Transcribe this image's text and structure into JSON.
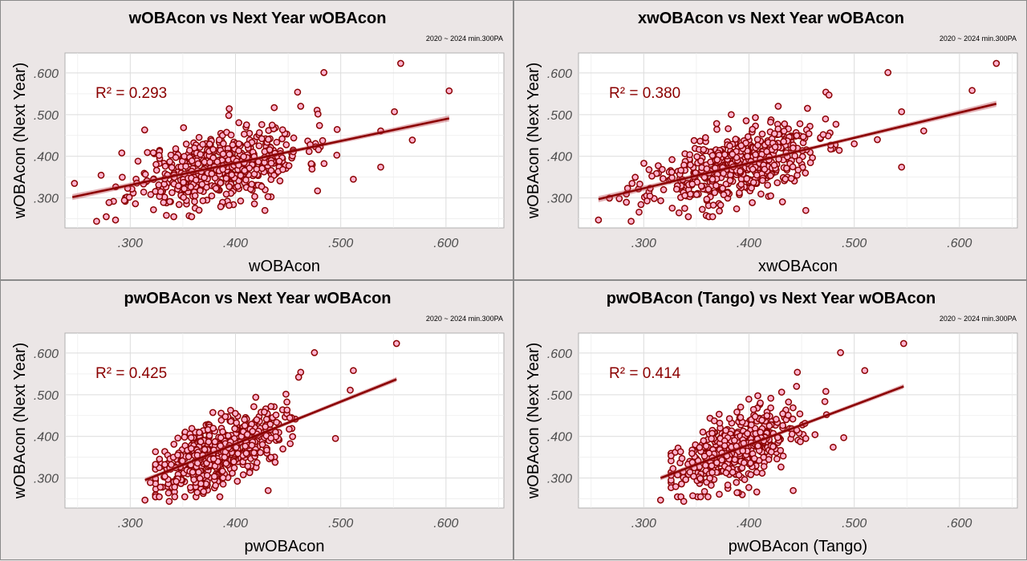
{
  "chart_data": [
    {
      "type": "scatter",
      "title": "wOBAcon vs Next Year wOBAcon",
      "subtitle": "2020 ~ 2024 min.300PA",
      "xlabel": "wOBAcon",
      "ylabel": "wOBAcon (Next Year)",
      "annotation": "R² = 0.293",
      "xlim": [
        0.238,
        0.655
      ],
      "ylim": [
        0.228,
        0.648
      ],
      "xticks": [
        0.3,
        0.4,
        0.5,
        0.6
      ],
      "yticks": [
        0.3,
        0.4,
        0.5,
        0.6
      ],
      "xtick_labels": [
        ".300",
        ".400",
        ".500",
        ".600"
      ],
      "ytick_labels": [
        ".300",
        ".400",
        ".500",
        ".600"
      ],
      "grid": true,
      "trend": {
        "x": [
          0.245,
          0.603
        ],
        "y": [
          0.302,
          0.491
        ]
      },
      "x_range": [
        0.245,
        0.603
      ],
      "slope": 0.53,
      "spread": 0.043,
      "seed": 11,
      "n_points": 520,
      "center": [
        0.385,
        0.382
      ],
      "sd": [
        0.04,
        0.045
      ],
      "highlighted_points": {
        "x": [
          0.557,
          0.603,
          0.484,
          0.551,
          0.568,
          0.538,
          0.459,
          0.247,
          0.292,
          0.286,
          0.268,
          0.538,
          0.428,
          0.512,
          0.478,
          0.462,
          0.471
        ],
        "y": [
          0.623,
          0.557,
          0.601,
          0.507,
          0.439,
          0.374,
          0.554,
          0.335,
          0.408,
          0.247,
          0.244,
          0.461,
          0.27,
          0.345,
          0.317,
          0.52,
          0.428
        ]
      }
    },
    {
      "type": "scatter",
      "title": "xwOBAcon vs Next Year wOBAcon",
      "subtitle": "2020 ~ 2024 min.300PA",
      "xlabel": "xwOBAcon",
      "ylabel": "wOBAcon (Next Year)",
      "annotation": "R² = 0.380",
      "xlim": [
        0.238,
        0.655
      ],
      "ylim": [
        0.228,
        0.648
      ],
      "xticks": [
        0.3,
        0.4,
        0.5,
        0.6
      ],
      "yticks": [
        0.3,
        0.4,
        0.5,
        0.6
      ],
      "xtick_labels": [
        ".300",
        ".400",
        ".500",
        ".600"
      ],
      "ytick_labels": [
        ".300",
        ".400",
        ".500",
        ".600"
      ],
      "grid": true,
      "trend": {
        "x": [
          0.257,
          0.635
        ],
        "y": [
          0.297,
          0.526
        ]
      },
      "x_range": [
        0.257,
        0.635
      ],
      "slope": 0.61,
      "spread": 0.041,
      "seed": 23,
      "n_points": 520,
      "center": [
        0.385,
        0.382
      ],
      "sd": [
        0.04,
        0.045
      ],
      "highlighted_points": {
        "x": [
          0.635,
          0.532,
          0.612,
          0.545,
          0.566,
          0.257,
          0.288,
          0.545,
          0.454,
          0.473,
          0.522,
          0.476,
          0.5
        ],
        "y": [
          0.623,
          0.601,
          0.558,
          0.507,
          0.461,
          0.247,
          0.244,
          0.374,
          0.27,
          0.554,
          0.44,
          0.547,
          0.43
        ]
      }
    },
    {
      "type": "scatter",
      "title": "pwOBAcon vs Next Year wOBAcon",
      "subtitle": "2020 ~ 2024 min.300PA",
      "xlabel": "pwOBAcon",
      "ylabel": "wOBAcon (Next Year)",
      "annotation": "R² = 0.425",
      "xlim": [
        0.238,
        0.655
      ],
      "ylim": [
        0.228,
        0.648
      ],
      "xticks": [
        0.3,
        0.4,
        0.5,
        0.6
      ],
      "yticks": [
        0.3,
        0.4,
        0.5,
        0.6
      ],
      "xtick_labels": [
        ".300",
        ".400",
        ".500",
        ".600"
      ],
      "ytick_labels": [
        ".300",
        ".400",
        ".500",
        ".600"
      ],
      "grid": true,
      "trend": {
        "x": [
          0.314,
          0.553
        ],
        "y": [
          0.295,
          0.537
        ]
      },
      "x_range": [
        0.314,
        0.553
      ],
      "slope": 1.01,
      "spread": 0.04,
      "seed": 37,
      "n_points": 520,
      "center": [
        0.385,
        0.382
      ],
      "sd": [
        0.03,
        0.045
      ],
      "highlighted_points": {
        "x": [
          0.553,
          0.475,
          0.512,
          0.509,
          0.314,
          0.319,
          0.337,
          0.431,
          0.495,
          0.462,
          0.46
        ],
        "y": [
          0.623,
          0.601,
          0.558,
          0.511,
          0.247,
          0.289,
          0.244,
          0.27,
          0.395,
          0.554,
          0.542
        ]
      }
    },
    {
      "type": "scatter",
      "title": "pwOBAcon (Tango) vs Next Year wOBAcon",
      "subtitle": "2020 ~ 2024 min.300PA",
      "xlabel": "pwOBAcon (Tango)",
      "ylabel": "wOBAcon (Next Year)",
      "annotation": "R² = 0.414",
      "xlim": [
        0.238,
        0.655
      ],
      "ylim": [
        0.228,
        0.648
      ],
      "xticks": [
        0.3,
        0.4,
        0.5,
        0.6
      ],
      "yticks": [
        0.3,
        0.4,
        0.5,
        0.6
      ],
      "xtick_labels": [
        ".300",
        ".400",
        ".500",
        ".600"
      ],
      "ytick_labels": [
        ".300",
        ".400",
        ".500",
        ".600"
      ],
      "grid": true,
      "trend": {
        "x": [
          0.316,
          0.547
        ],
        "y": [
          0.3,
          0.52
        ]
      },
      "x_range": [
        0.316,
        0.547
      ],
      "slope": 0.95,
      "spread": 0.04,
      "seed": 53,
      "n_points": 520,
      "center": [
        0.39,
        0.382
      ],
      "sd": [
        0.03,
        0.045
      ],
      "highlighted_points": {
        "x": [
          0.547,
          0.487,
          0.51,
          0.316,
          0.338,
          0.442,
          0.473,
          0.49,
          0.446,
          0.48
        ],
        "y": [
          0.623,
          0.601,
          0.558,
          0.247,
          0.244,
          0.27,
          0.508,
          0.397,
          0.554,
          0.374
        ]
      }
    }
  ]
}
